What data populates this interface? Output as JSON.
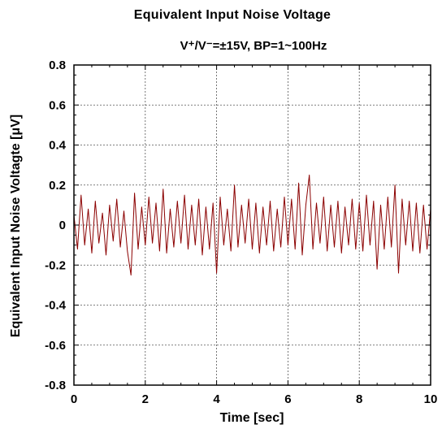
{
  "chart_data": {
    "type": "line",
    "title": "Equivalent Input Noise Voltage",
    "subtitle": "V⁺/V⁻=±15V, BP=1~100Hz",
    "xlabel": "Time [sec]",
    "ylabel": "Equivalent Input Noise Voltagte [μV]",
    "xlim": [
      0,
      10
    ],
    "ylim": [
      -0.8,
      0.8
    ],
    "x_ticks": [
      0,
      2,
      4,
      6,
      8,
      10
    ],
    "x_tick_labels": [
      "0",
      "2",
      "4",
      "6",
      "8",
      "10"
    ],
    "y_ticks": [
      -0.8,
      -0.6,
      -0.4,
      -0.2,
      0,
      0.2,
      0.4,
      0.6,
      0.8
    ],
    "y_tick_labels": [
      "-0.8",
      "-0.6",
      "-0.4",
      "-0.2",
      "0",
      "0.2",
      "0.4",
      "0.6",
      "0.8"
    ],
    "grid": true,
    "series": [
      {
        "color": "#8b0000",
        "x": [
          0,
          0.1,
          0.2,
          0.3,
          0.4,
          0.5,
          0.6,
          0.7,
          0.8,
          0.9,
          1.0,
          1.1,
          1.2,
          1.3,
          1.4,
          1.5,
          1.6,
          1.7,
          1.8,
          1.9,
          2.0,
          2.1,
          2.2,
          2.3,
          2.4,
          2.5,
          2.6,
          2.7,
          2.8,
          2.9,
          3.0,
          3.1,
          3.2,
          3.3,
          3.4,
          3.5,
          3.6,
          3.7,
          3.8,
          3.9,
          4.0,
          4.1,
          4.2,
          4.3,
          4.4,
          4.5,
          4.6,
          4.7,
          4.8,
          4.9,
          5.0,
          5.1,
          5.2,
          5.3,
          5.4,
          5.5,
          5.6,
          5.7,
          5.8,
          5.9,
          6.0,
          6.1,
          6.2,
          6.3,
          6.4,
          6.5,
          6.6,
          6.7,
          6.8,
          6.9,
          7.0,
          7.1,
          7.2,
          7.3,
          7.4,
          7.5,
          7.6,
          7.7,
          7.8,
          7.9,
          8.0,
          8.1,
          8.2,
          8.3,
          8.4,
          8.5,
          8.6,
          8.7,
          8.8,
          8.9,
          9.0,
          9.1,
          9.2,
          9.3,
          9.4,
          9.5,
          9.6,
          9.7,
          9.8,
          9.9,
          10.0
        ],
        "y": [
          0.05,
          -0.12,
          0.15,
          -0.1,
          0.08,
          -0.14,
          0.12,
          -0.09,
          0.06,
          -0.15,
          0.1,
          -0.08,
          0.13,
          -0.11,
          0.07,
          -0.13,
          -0.25,
          0.16,
          -0.12,
          0.09,
          -0.1,
          0.14,
          -0.09,
          0.11,
          -0.13,
          0.18,
          -0.14,
          0.08,
          -0.11,
          0.12,
          -0.09,
          0.15,
          -0.12,
          0.1,
          -0.1,
          0.13,
          -0.15,
          0.09,
          -0.12,
          0.11,
          -0.24,
          0.14,
          -0.1,
          0.08,
          -0.13,
          0.2,
          -0.11,
          0.1,
          -0.09,
          0.13,
          -0.12,
          0.11,
          -0.14,
          0.09,
          -0.1,
          0.12,
          -0.13,
          0.08,
          -0.11,
          0.14,
          -0.1,
          0.13,
          -0.12,
          0.21,
          -0.15,
          0.1,
          0.25,
          -0.12,
          0.11,
          -0.09,
          0.14,
          -0.13,
          0.1,
          -0.11,
          0.12,
          -0.14,
          0.09,
          -0.1,
          0.13,
          -0.12,
          0.11,
          -0.13,
          0.15,
          -0.1,
          0.12,
          -0.22,
          0.1,
          -0.12,
          0.14,
          -0.11,
          0.2,
          -0.24,
          0.13,
          -0.1,
          0.12,
          -0.13,
          0.11,
          -0.14,
          0.1,
          -0.12,
          0.08
        ]
      }
    ]
  }
}
